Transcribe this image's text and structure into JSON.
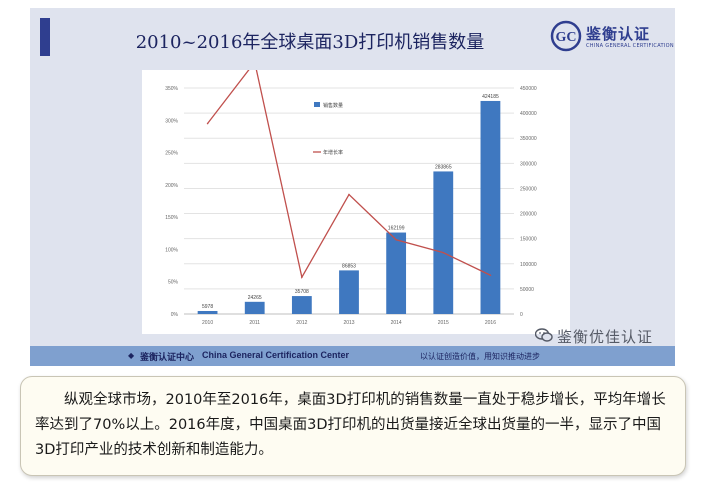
{
  "slide": {
    "title": "2010~2016年全球桌面3D打印机销售数量",
    "logo": {
      "name_cn": "鉴衡认证",
      "name_en": "CHINA GENERAL CERTIFICATION",
      "mark_letters": "GC",
      "icon": "gc-logo-icon"
    },
    "footer": {
      "org_cn": "鉴衡认证中心",
      "org_en": "China General Certification Center",
      "slogan": "以认证创造价值，用知识推动进步",
      "icon": "gc-small-logo-icon"
    },
    "watermark": {
      "text": "鉴衡优佳认证",
      "icon": "wechat-icon"
    }
  },
  "chart_data": {
    "type": "bar",
    "title": "",
    "categories": [
      "2010",
      "2011",
      "2012",
      "2013",
      "2014",
      "2015",
      "2016"
    ],
    "series": [
      {
        "name": "销售数量",
        "type": "bar",
        "axis": "right",
        "values": [
          5978,
          24265,
          35708,
          86853,
          162199,
          283865,
          424185
        ],
        "labels": [
          "5978",
          "24265",
          "35708",
          "86853",
          "162199",
          "283865",
          "424185"
        ],
        "color": "#3f78c0"
      },
      {
        "name": "年增长率",
        "type": "line",
        "axis": "left",
        "values": [
          295,
          390,
          57,
          185,
          115,
          95,
          60
        ],
        "unit": "%",
        "color": "#c0504d"
      }
    ],
    "y_left": {
      "ticks": [
        "0%",
        "50%",
        "100%",
        "150%",
        "200%",
        "250%",
        "300%",
        "350%"
      ],
      "range": [
        0,
        350
      ]
    },
    "y_right": {
      "ticks": [
        "0",
        "50000",
        "100000",
        "150000",
        "200000",
        "250000",
        "300000",
        "350000",
        "400000",
        "450000"
      ],
      "range": [
        0,
        450000
      ]
    },
    "legend": "inside upper-left of plot"
  },
  "text_box": {
    "paragraph": "纵观全球市场，2010年至2016年，桌面3D打印机的销售数量一直处于稳步增长，平均年增长率达到了70%以上。2016年度，中国桌面3D打印机的出货量接近全球出货量的一半，显示了中国3D打印产业的技术创新和制造能力。"
  }
}
